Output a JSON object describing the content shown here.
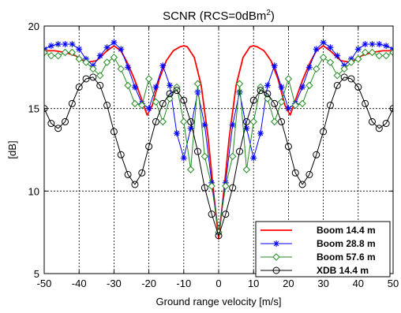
{
  "chart_data": {
    "type": "line",
    "title": "SCNR (RCS=0dBm",
    "title_superscript": "2",
    "title_suffix": ")",
    "xlabel": "Ground range velocity [m/s]",
    "ylabel": "[dB]",
    "xlim": [
      -50,
      50
    ],
    "ylim": [
      5,
      20
    ],
    "xticks": [
      -50,
      -40,
      -30,
      -20,
      -10,
      0,
      10,
      20,
      30,
      40,
      50
    ],
    "yticks": [
      5,
      10,
      15,
      20
    ],
    "grid": true,
    "legend_position": "bottom-right",
    "series": [
      {
        "name": "Boom 14.4 m",
        "color": "#ff0000",
        "marker": "none",
        "x": [
          -50,
          -47,
          -44,
          -41,
          -38,
          -35,
          -32,
          -30,
          -28,
          -26,
          -24,
          -22,
          -20.5,
          -19,
          -17,
          -15,
          -13,
          -11,
          -10,
          -9,
          -7,
          -5,
          -3,
          -1.5,
          0,
          1.5,
          3,
          5,
          7,
          9,
          10,
          11,
          13,
          15,
          17,
          19,
          20.5,
          22,
          24,
          26,
          28,
          30,
          32,
          35,
          38,
          41,
          44,
          47,
          50
        ],
        "y": [
          18.5,
          18.5,
          18.4,
          18.2,
          17.8,
          17.9,
          18.5,
          18.8,
          18.5,
          17.7,
          16.7,
          15.5,
          14.6,
          15.2,
          16.8,
          17.9,
          18.5,
          18.75,
          18.8,
          18.75,
          18.1,
          16.4,
          13.2,
          10.0,
          7.1,
          10.0,
          13.2,
          16.4,
          18.1,
          18.75,
          18.8,
          18.75,
          18.5,
          17.9,
          16.8,
          15.2,
          14.6,
          15.5,
          16.7,
          17.7,
          18.5,
          18.8,
          18.5,
          17.9,
          17.8,
          18.2,
          18.4,
          18.5,
          18.5
        ]
      },
      {
        "name": "Boom 28.8 m",
        "color": "#0000ff",
        "marker": "star",
        "x": [
          -50,
          -48,
          -46,
          -44,
          -42,
          -40,
          -38,
          -36,
          -34,
          -32,
          -30,
          -28,
          -26,
          -24,
          -22,
          -20,
          -18,
          -16,
          -14,
          -12,
          -10,
          -8,
          -6,
          -4,
          -2,
          0,
          2,
          4,
          6,
          8,
          10,
          12,
          14,
          16,
          18,
          20,
          22,
          24,
          26,
          28,
          30,
          32,
          34,
          36,
          38,
          40,
          42,
          44,
          46,
          48,
          50
        ],
        "y": [
          18.6,
          18.8,
          18.9,
          18.9,
          18.9,
          18.6,
          18.0,
          17.6,
          18.2,
          18.7,
          19.0,
          18.6,
          17.5,
          16.3,
          15.3,
          15.0,
          16.3,
          17.6,
          16.4,
          13.5,
          12.0,
          13.8,
          16.0,
          14.0,
          10.5,
          7.5,
          10.5,
          14.0,
          16.0,
          13.8,
          12.0,
          13.5,
          16.4,
          17.6,
          16.3,
          15.0,
          15.3,
          16.3,
          17.5,
          18.6,
          19.0,
          18.7,
          18.2,
          17.6,
          18.0,
          18.6,
          18.9,
          18.9,
          18.9,
          18.8,
          18.6
        ]
      },
      {
        "name": "Boom 57.6 m",
        "color": "#228b22",
        "marker": "diamond",
        "x": [
          -50,
          -48,
          -46,
          -44,
          -42,
          -40,
          -38,
          -36,
          -34,
          -32,
          -30,
          -28,
          -26,
          -24,
          -22,
          -20,
          -18,
          -16,
          -14,
          -12,
          -10,
          -8,
          -6,
          -4,
          -2,
          0,
          2,
          4,
          6,
          8,
          10,
          12,
          14,
          16,
          18,
          20,
          22,
          24,
          26,
          28,
          30,
          32,
          34,
          36,
          38,
          40,
          42,
          44,
          46,
          48,
          50
        ],
        "y": [
          18.4,
          18.2,
          18.2,
          18.4,
          18.4,
          18.0,
          17.8,
          17.4,
          17.0,
          17.8,
          18.1,
          17.4,
          16.4,
          15.3,
          15.2,
          16.8,
          15.4,
          14.2,
          15.6,
          16.3,
          14.2,
          11.3,
          16.5,
          12.1,
          10.3,
          7.5,
          10.3,
          12.1,
          16.5,
          11.3,
          14.2,
          16.3,
          15.6,
          14.2,
          15.4,
          16.8,
          15.2,
          15.3,
          16.4,
          17.4,
          18.1,
          17.8,
          17.0,
          17.4,
          17.8,
          18.0,
          18.4,
          18.4,
          18.2,
          18.2,
          18.4
        ]
      },
      {
        "name": "XDB 14.4 m",
        "color": "#000000",
        "marker": "circle",
        "x": [
          -50,
          -48,
          -46,
          -44,
          -42,
          -40,
          -38,
          -36,
          -34,
          -32,
          -30,
          -28,
          -26,
          -24,
          -22,
          -20,
          -18,
          -16,
          -14,
          -12,
          -10,
          -8,
          -6,
          -4,
          -2,
          0,
          2,
          4,
          6,
          8,
          10,
          12,
          14,
          16,
          18,
          20,
          22,
          24,
          26,
          28,
          30,
          32,
          34,
          36,
          38,
          40,
          42,
          44,
          46,
          48,
          50
        ],
        "y": [
          15.0,
          14.1,
          13.8,
          14.2,
          15.3,
          16.3,
          16.8,
          16.9,
          16.4,
          15.2,
          13.6,
          12.2,
          11.0,
          10.4,
          11.1,
          12.7,
          14.2,
          15.3,
          15.9,
          16.1,
          15.5,
          14.2,
          12.4,
          10.2,
          8.6,
          7.3,
          8.6,
          10.2,
          12.4,
          14.2,
          15.5,
          16.1,
          15.9,
          15.3,
          14.2,
          12.7,
          11.1,
          10.4,
          11.0,
          12.2,
          13.6,
          15.2,
          16.4,
          16.9,
          16.8,
          16.3,
          15.3,
          14.2,
          13.8,
          14.1,
          15.0
        ]
      }
    ]
  }
}
